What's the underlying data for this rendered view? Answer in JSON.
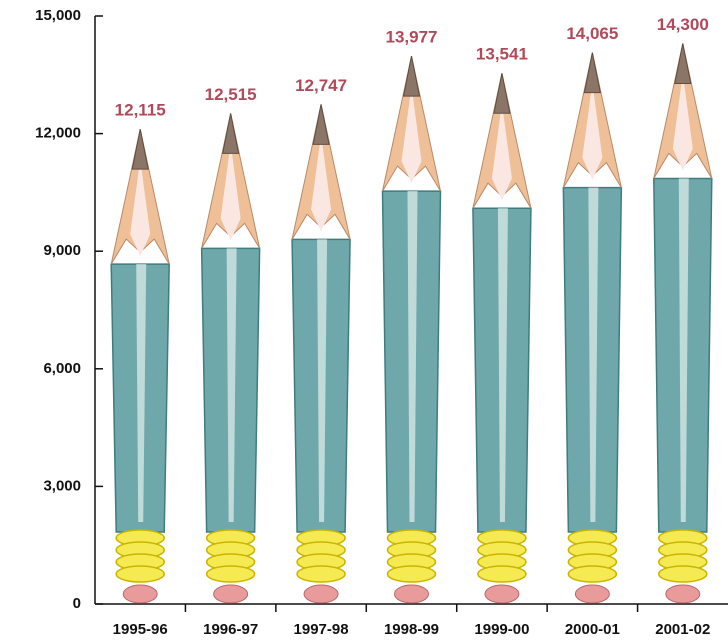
{
  "chart_data": {
    "type": "pictograph",
    "categories": [
      "1995-96",
      "1996-97",
      "1997-98",
      "1998-99",
      "1999-00",
      "2000-01",
      "2001-02"
    ],
    "values": [
      12115,
      12515,
      12747,
      13977,
      13541,
      14065,
      14300
    ],
    "value_labels": [
      "12,115",
      "12,515",
      "12,747",
      "13,977",
      "13,541",
      "14,065",
      "14,300"
    ],
    "color": "#6fa8aa",
    "ylim": [
      0,
      15000
    ],
    "yticks": [
      0,
      {
        "value": 3000,
        "label": "3,000"
      },
      {
        "value": 6000,
        "label": "6,000"
      },
      {
        "value": 9000,
        "label": "9,000"
      },
      {
        "value": 12000,
        "label": "12,000"
      },
      {
        "value": 15000,
        "label": "15,000"
      }
    ]
  }
}
